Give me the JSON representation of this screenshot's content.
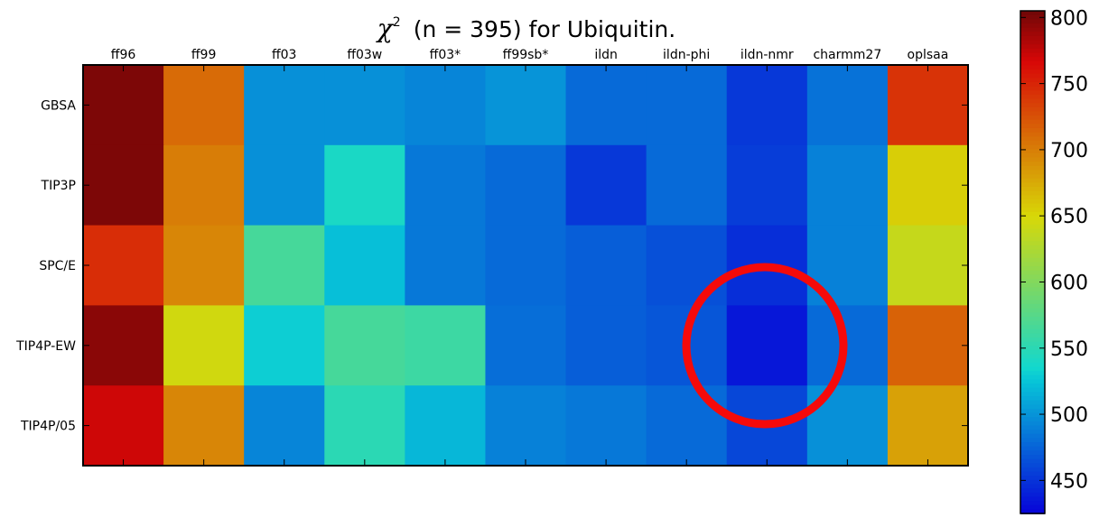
{
  "chart_data": {
    "type": "heatmap",
    "title_symbol": "χ",
    "title_exp": "2",
    "title_rest": "(n = 395) for Ubiquitin.",
    "columns": [
      "ff96",
      "ff99",
      "ff03",
      "ff03w",
      "ff03*",
      "ff99sb*",
      "ildn",
      "ildn-phi",
      "ildn-nmr",
      "charmm27",
      "oplsaa"
    ],
    "rows": [
      "GBSA",
      "TIP3P",
      "SPC/E",
      "TIP4P-EW",
      "TIP4P/05"
    ],
    "values": [
      [
        800,
        710,
        498,
        498,
        492,
        500,
        478,
        478,
        452,
        482,
        742
      ],
      [
        800,
        700,
        498,
        540,
        485,
        478,
        452,
        478,
        455,
        490,
        655
      ],
      [
        745,
        695,
        565,
        522,
        485,
        478,
        472,
        465,
        447,
        490,
        638
      ],
      [
        795,
        645,
        530,
        565,
        560,
        480,
        472,
        468,
        435,
        478,
        715
      ],
      [
        770,
        695,
        492,
        550,
        518,
        490,
        485,
        478,
        460,
        498,
        680
      ]
    ],
    "colorbar": {
      "min": 425,
      "max": 805,
      "ticks": [
        450,
        500,
        550,
        600,
        650,
        700,
        750,
        800
      ]
    },
    "annotation": {
      "shape": "circle",
      "color": "#f50a0a",
      "target_row": "TIP4P-EW",
      "target_column": "ildn-nmr"
    },
    "grid": false
  }
}
